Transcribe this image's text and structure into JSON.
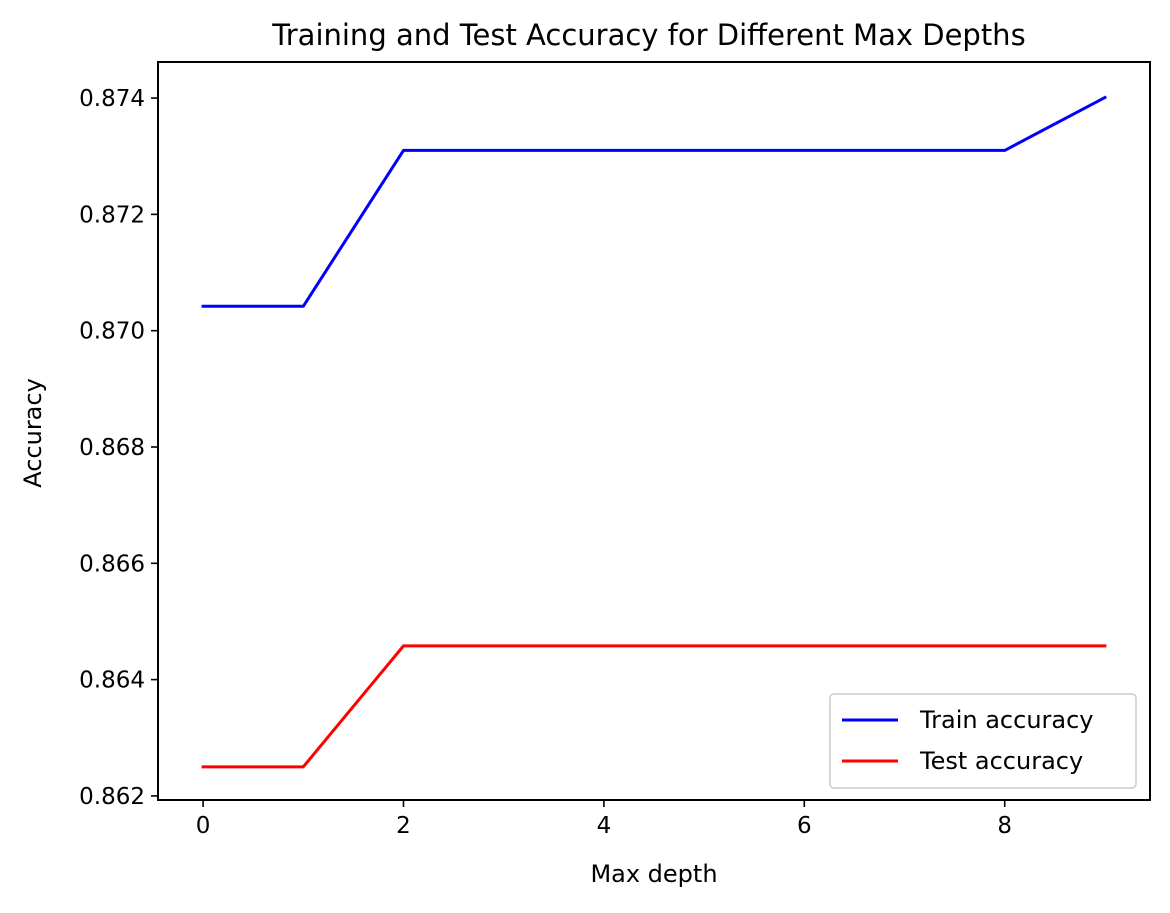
{
  "chart_data": {
    "type": "line",
    "title": "Training and Test Accuracy for Different Max Depths",
    "xlabel": "Max depth",
    "ylabel": "Accuracy",
    "x": [
      0,
      1,
      2,
      3,
      4,
      5,
      6,
      7,
      8,
      9
    ],
    "xlim": [
      -0.45,
      9.45
    ],
    "ylim": [
      0.86193,
      0.87462
    ],
    "xticks": [
      0,
      2,
      4,
      6,
      8
    ],
    "xtick_labels": [
      "0",
      "2",
      "4",
      "6",
      "8"
    ],
    "yticks": [
      0.862,
      0.864,
      0.866,
      0.868,
      0.87,
      0.872,
      0.874
    ],
    "ytick_labels": [
      "0.862",
      "0.864",
      "0.866",
      "0.868",
      "0.870",
      "0.872",
      "0.874"
    ],
    "grid": false,
    "legend_position": "lower right",
    "series": [
      {
        "name": "Train accuracy",
        "color": "#0000ff",
        "values": [
          0.87042,
          0.87042,
          0.8731,
          0.8731,
          0.8731,
          0.8731,
          0.8731,
          0.8731,
          0.8731,
          0.87401
        ]
      },
      {
        "name": "Test accuracy",
        "color": "#ff0000",
        "values": [
          0.8625,
          0.8625,
          0.86458,
          0.86458,
          0.86458,
          0.86458,
          0.86458,
          0.86458,
          0.86458,
          0.86458
        ]
      }
    ]
  }
}
